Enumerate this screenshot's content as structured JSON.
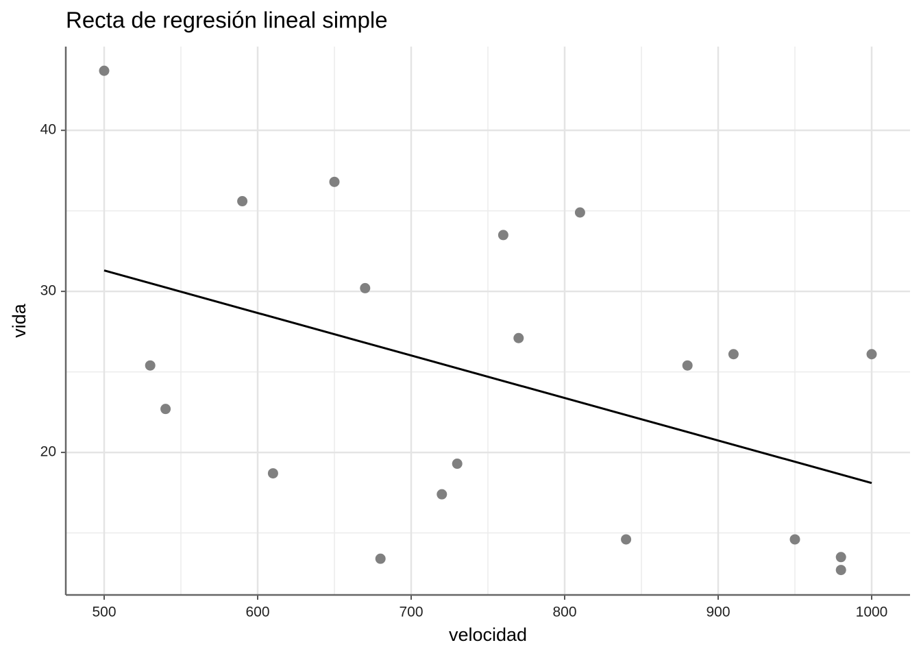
{
  "chart_data": {
    "type": "scatter",
    "title": "Recta de regresión lineal simple",
    "x_label": "velocidad",
    "y_label": "vida",
    "x": [
      500,
      530,
      540,
      590,
      610,
      650,
      670,
      680,
      720,
      730,
      760,
      770,
      810,
      840,
      880,
      910,
      950,
      980,
      980,
      1000
    ],
    "values": [
      43.7,
      25.4,
      22.7,
      35.6,
      18.7,
      36.8,
      30.2,
      13.4,
      17.4,
      19.3,
      33.5,
      27.1,
      34.9,
      14.6,
      25.4,
      26.1,
      14.6,
      13.5,
      12.7,
      26.1
    ],
    "color": "#808080",
    "fit_line": {
      "x": [
        500,
        1000
      ],
      "values": [
        31.3,
        18.1
      ],
      "color": "#000000"
    },
    "xlim": [
      475,
      1025
    ],
    "ylim": [
      11.15,
      45.2
    ],
    "xticks": [
      500,
      600,
      700,
      800,
      900,
      1000
    ],
    "yticks": [
      20,
      30,
      40
    ],
    "x_minor_grid": [
      550,
      650,
      750,
      850,
      950
    ],
    "y_minor_grid": [
      15,
      25,
      35
    ],
    "grid": true
  }
}
